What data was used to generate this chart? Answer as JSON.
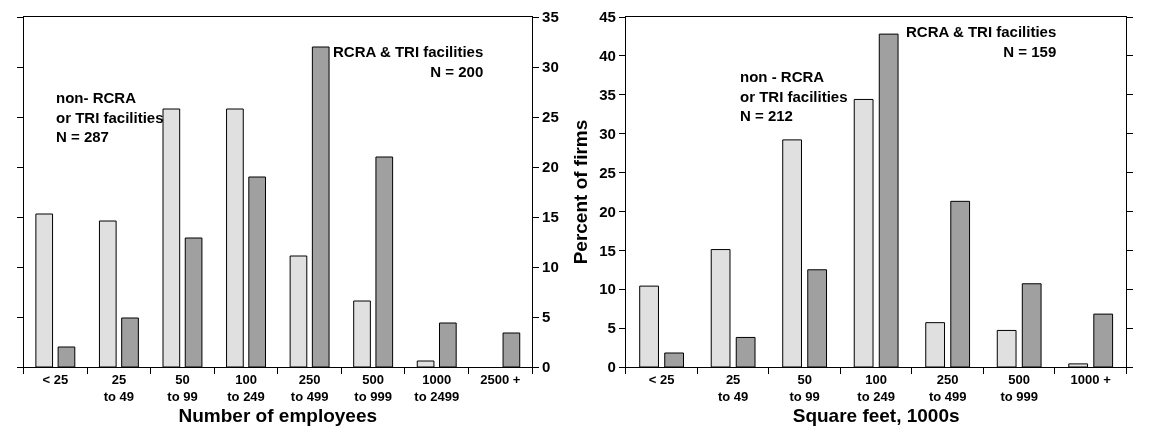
{
  "chart_data": [
    {
      "type": "bar",
      "xlabel": "Number of employees",
      "categories": [
        "< 25",
        "25\nto 49",
        "50\nto 99",
        "100\nto 249",
        "250\nto 499",
        "500\nto 999",
        "1000\nto 2499",
        "2500 +"
      ],
      "series": [
        {
          "color": "#e0e0e0",
          "values": [
            15.3,
            14.6,
            25.8,
            25.8,
            11.1,
            6.6,
            0.6,
            null
          ]
        },
        {
          "color": "#a0a0a0",
          "values": [
            2.0,
            4.9,
            12.9,
            19.0,
            32.0,
            21.0,
            4.4,
            3.4
          ]
        }
      ],
      "ylim": [
        0,
        35
      ],
      "yticks": [
        0,
        5,
        10,
        15,
        20,
        25,
        30,
        35
      ],
      "annotations": [
        "non- RCRA\nor TRI facilities\nN = 287",
        "RCRA & TRI facilities\nN = 200"
      ]
    },
    {
      "type": "bar",
      "xlabel": "Square feet, 1000s",
      "ylabel": "Percent of firms",
      "categories": [
        "< 25",
        "25\nto 49",
        "50\nto 99",
        "100\nto 249",
        "250\nto 499",
        "500\nto 999",
        "1000 +"
      ],
      "series": [
        {
          "color": "#e0e0e0",
          "values": [
            10.4,
            15.1,
            29.2,
            34.4,
            5.7,
            4.7,
            0.4
          ]
        },
        {
          "color": "#a0a0a0",
          "values": [
            1.8,
            3.8,
            12.5,
            42.8,
            21.3,
            10.7,
            6.8
          ]
        }
      ],
      "ylim": [
        0,
        45
      ],
      "yticks": [
        0,
        5,
        10,
        15,
        20,
        25,
        30,
        35,
        40,
        45
      ],
      "annotations": [
        "non - RCRA\nor TRI facilities\nN = 212",
        "RCRA & TRI facilities\nN = 159"
      ]
    }
  ]
}
